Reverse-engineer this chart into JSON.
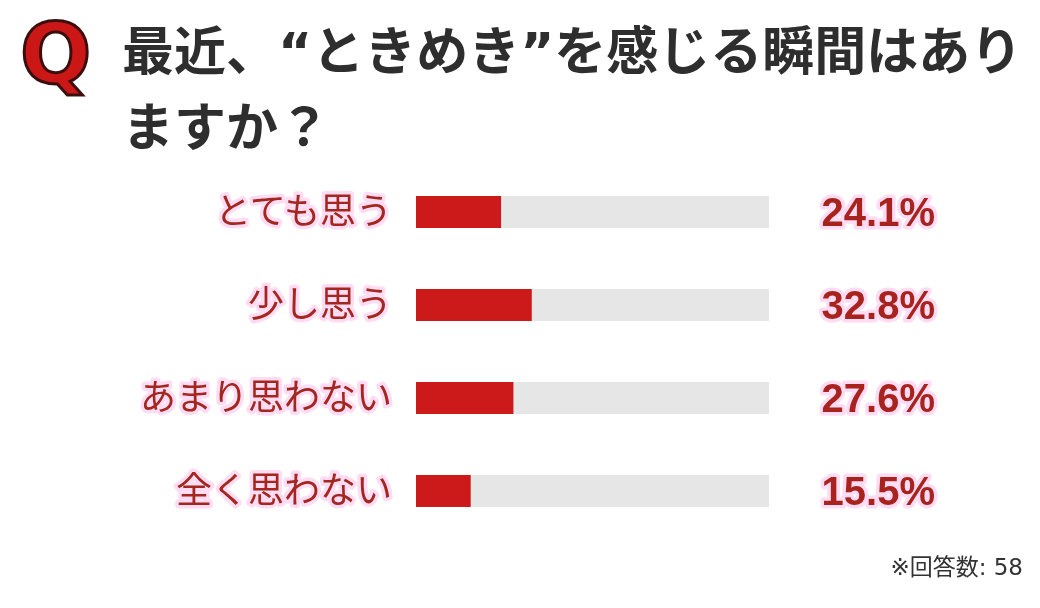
{
  "chart_data": {
    "type": "bar",
    "orientation": "horizontal",
    "title": "最近、“ときめき”を感じる瞬間はありますか？",
    "categories": [
      "とても思う",
      "少し思う",
      "あまり思わない",
      "全く思わない"
    ],
    "values": [
      24.1,
      32.8,
      27.6,
      15.5
    ],
    "color": "#cc1a1a",
    "value_labels": [
      "24.1%",
      "32.8%",
      "27.6%",
      "15.5%"
    ],
    "xlim": [
      0,
      100
    ],
    "tick_labels": "y",
    "annotations": [
      "Q",
      "※回答数: 58"
    ]
  }
}
